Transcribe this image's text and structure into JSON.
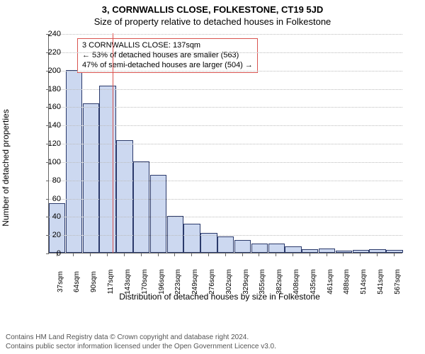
{
  "title": "3, CORNWALLIS CLOSE, FOLKESTONE, CT19 5JD",
  "subtitle": "Size of property relative to detached houses in Folkestone",
  "ylabel": "Number of detached properties",
  "xlabel": "Distribution of detached houses by size in Folkestone",
  "chart": {
    "type": "histogram",
    "ylim": [
      0,
      240
    ],
    "ytick_step": 20,
    "bar_fill": "#ccd8f0",
    "bar_stroke": "#2b3a6b",
    "grid_color": "#bbbbbb",
    "plot_bg": "#ffffff",
    "marker_color": "#d9534f",
    "marker_x": 137,
    "x_start": 37,
    "x_step": 26.5,
    "categories": [
      "37sqm",
      "64sqm",
      "90sqm",
      "117sqm",
      "143sqm",
      "170sqm",
      "196sqm",
      "223sqm",
      "249sqm",
      "276sqm",
      "302sqm",
      "329sqm",
      "355sqm",
      "382sqm",
      "408sqm",
      "435sqm",
      "461sqm",
      "488sqm",
      "514sqm",
      "541sqm",
      "567sqm"
    ],
    "values": [
      54,
      200,
      163,
      183,
      123,
      100,
      85,
      40,
      32,
      22,
      18,
      14,
      10,
      10,
      7,
      4,
      5,
      2,
      3,
      4,
      3
    ]
  },
  "annotation": {
    "line1": "3 CORNWALLIS CLOSE: 137sqm",
    "line2": "← 53% of detached houses are smaller (563)",
    "line3": "47% of semi-detached houses are larger (504) →"
  },
  "footer": {
    "line1": "Contains HM Land Registry data © Crown copyright and database right 2024.",
    "line2": "Contains public sector information licensed under the Open Government Licence v3.0."
  }
}
